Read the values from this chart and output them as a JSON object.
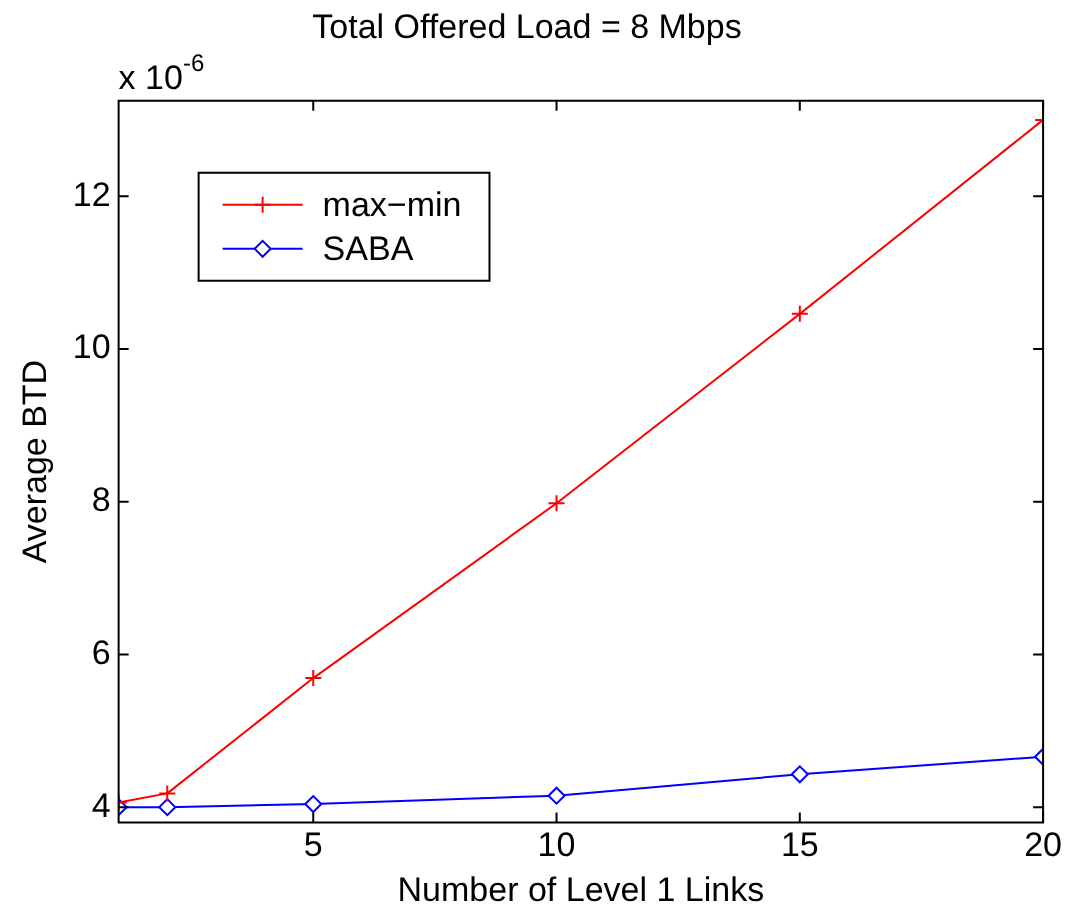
{
  "chart_data": {
    "type": "line",
    "title": "Total Offered Load = 8 Mbps",
    "xlabel": "Number of Level 1 Links",
    "ylabel": "Average BTD",
    "annotations": [
      "x 10$^{-6}$"
    ],
    "x": [
      1,
      2,
      5,
      10,
      15,
      20
    ],
    "series": [
      {
        "name": "max−min",
        "color": "#ff0000",
        "marker": "cross",
        "values": [
          4.06,
          4.18,
          5.69,
          7.98,
          10.46,
          13.0
        ]
      },
      {
        "name": "SABA",
        "color": "#0000ff",
        "marker": "diamond",
        "values": [
          4.0,
          4.0,
          4.04,
          4.15,
          4.43,
          4.66
        ]
      }
    ],
    "xlim": [
      1,
      20
    ],
    "xticks": [
      5,
      10,
      15,
      20
    ],
    "ylim": [
      3.8,
      13.25
    ],
    "yticks": [
      4,
      6,
      8,
      10,
      12
    ],
    "grid": false,
    "legend": "top left",
    "line_style": "solid"
  }
}
